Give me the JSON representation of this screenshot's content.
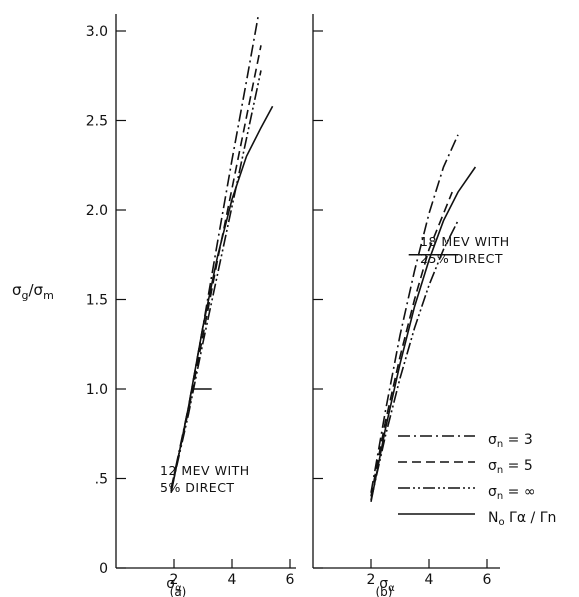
{
  "figure": {
    "y_axis_label_main": "σ",
    "y_axis_label_sub_num": "g",
    "y_axis_label_slash": "/σ",
    "y_axis_label_sub_den": "m"
  },
  "legend": {
    "entries": [
      {
        "main": "σ",
        "sub": "n",
        "rest": " = 3",
        "style": "dash-dot"
      },
      {
        "main": "σ",
        "sub": "n",
        "rest": " = 5",
        "style": "dashed"
      },
      {
        "main": "σ",
        "sub": "n",
        "rest": " = ∞",
        "style": "dash-dot-dot"
      },
      {
        "main": "N",
        "sub": "o",
        "rest": " Γα / Γn",
        "style": "solid"
      }
    ]
  },
  "chart_data": [
    {
      "type": "line",
      "panel_label": "(a)",
      "annotation_lines": [
        "12 MEV WITH",
        "5% DIRECT"
      ],
      "xlabel_main": "σ",
      "xlabel_sub": "α",
      "x_ticks": [
        "2",
        "4",
        "6"
      ],
      "y_ticks": [
        "0",
        ".5",
        "1.0",
        "1.5",
        "2.0",
        "2.5",
        "3.0"
      ],
      "xlim": [
        0,
        6.5
      ],
      "ylim": [
        0,
        3.1
      ],
      "crossbar": {
        "x": [
          2.6,
          3.3
        ],
        "y": 1.0
      },
      "series": [
        {
          "name": "σn = 3",
          "style": "dash-dot",
          "points": [
            [
              1.9,
              0.44
            ],
            [
              2.5,
              0.9
            ],
            [
              3.0,
              1.35
            ],
            [
              3.5,
              1.82
            ],
            [
              4.0,
              2.28
            ],
            [
              4.5,
              2.72
            ],
            [
              4.9,
              3.08
            ]
          ]
        },
        {
          "name": "σn = 5",
          "style": "dashed",
          "points": [
            [
              1.9,
              0.44
            ],
            [
              2.5,
              0.88
            ],
            [
              3.0,
              1.3
            ],
            [
              3.5,
              1.72
            ],
            [
              4.0,
              2.12
            ],
            [
              4.5,
              2.52
            ],
            [
              5.0,
              2.92
            ]
          ]
        },
        {
          "name": "σn = ∞",
          "style": "dash-dot-dot",
          "points": [
            [
              1.9,
              0.43
            ],
            [
              2.5,
              0.86
            ],
            [
              3.0,
              1.26
            ],
            [
              3.5,
              1.64
            ],
            [
              4.0,
              2.02
            ],
            [
              4.5,
              2.4
            ],
            [
              5.0,
              2.78
            ]
          ]
        },
        {
          "name": "No Γα / Γn",
          "style": "solid",
          "points": [
            [
              1.9,
              0.42
            ],
            [
              2.5,
              0.9
            ],
            [
              3.0,
              1.35
            ],
            [
              3.5,
              1.74
            ],
            [
              4.0,
              2.06
            ],
            [
              4.5,
              2.3
            ],
            [
              5.0,
              2.46
            ],
            [
              5.4,
              2.58
            ]
          ]
        }
      ]
    },
    {
      "type": "line",
      "panel_label": "(b)",
      "annotation_lines": [
        "18 MEV WITH",
        "25% DIRECT"
      ],
      "xlabel_main": "σ",
      "xlabel_sub": "α",
      "x_ticks": [
        "2",
        "4",
        "6"
      ],
      "y_ticks": [],
      "xlim": [
        0,
        6.5
      ],
      "ylim": [
        0,
        3.1
      ],
      "crossbar": {
        "x": [
          3.3,
          5.0
        ],
        "y": 1.75
      },
      "series": [
        {
          "name": "σn = 3",
          "style": "dash-dot",
          "points": [
            [
              2.0,
              0.42
            ],
            [
              2.5,
              0.88
            ],
            [
              3.0,
              1.3
            ],
            [
              3.5,
              1.66
            ],
            [
              4.0,
              1.98
            ],
            [
              4.5,
              2.24
            ],
            [
              5.0,
              2.42
            ]
          ]
        },
        {
          "name": "σn = 5",
          "style": "dashed",
          "points": [
            [
              2.0,
              0.4
            ],
            [
              2.5,
              0.82
            ],
            [
              3.0,
              1.18
            ],
            [
              3.5,
              1.5
            ],
            [
              4.0,
              1.78
            ],
            [
              4.5,
              1.98
            ],
            [
              4.8,
              2.1
            ]
          ]
        },
        {
          "name": "σn = ∞",
          "style": "dash-dot-dot",
          "points": [
            [
              2.0,
              0.38
            ],
            [
              2.5,
              0.74
            ],
            [
              3.0,
              1.06
            ],
            [
              3.5,
              1.34
            ],
            [
              4.0,
              1.58
            ],
            [
              4.5,
              1.78
            ],
            [
              5.0,
              1.94
            ]
          ]
        },
        {
          "name": "No Γα / Γn",
          "style": "solid",
          "points": [
            [
              2.0,
              0.37
            ],
            [
              2.5,
              0.78
            ],
            [
              3.0,
              1.14
            ],
            [
              3.5,
              1.46
            ],
            [
              4.0,
              1.72
            ],
            [
              4.5,
              1.94
            ],
            [
              5.0,
              2.1
            ],
            [
              5.6,
              2.24
            ]
          ]
        }
      ]
    }
  ]
}
